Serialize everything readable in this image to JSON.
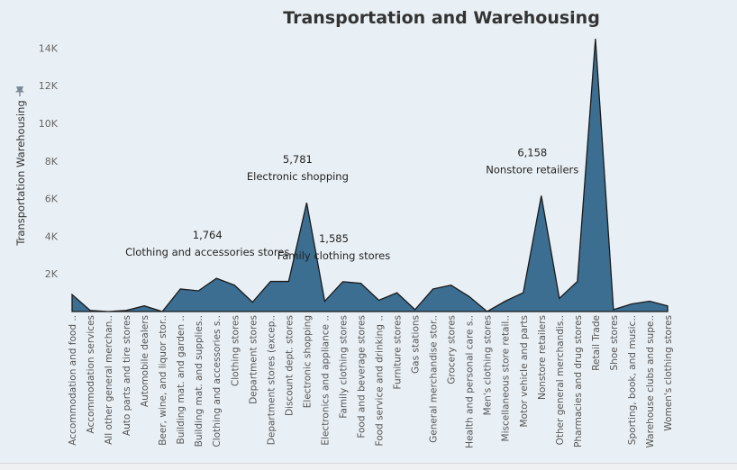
{
  "window": {
    "title": "Transportation and Warehousing"
  },
  "icons": {
    "pin": "pin-icon"
  },
  "colors": {
    "area_fill": "#3b6e91",
    "area_stroke": "#1a1a1a",
    "background": "#e9f0f5"
  },
  "chart_data": {
    "type": "area",
    "title": "Transportation and Warehousing",
    "xlabel": "",
    "ylabel": "Transportation Warehousing",
    "ylim": [
      0,
      14500
    ],
    "yticks": [
      2000,
      4000,
      6000,
      8000,
      10000,
      12000,
      14000
    ],
    "ytick_labels": [
      "2K",
      "4K",
      "6K",
      "8K",
      "10K",
      "12K",
      "14K"
    ],
    "grid": false,
    "categories": [
      "Accommodation and food ..",
      "Accommodation services",
      "All other general merchan..",
      "Auto parts and tire stores",
      "Automobile dealers",
      "Beer, wine, and liquor stor..",
      "Building mat. and garden ..",
      "Building mat. and supplies..",
      "Clothing and accessories s..",
      "Clothing stores",
      "Department stores",
      "Department stores (excep..",
      "Discount dept. stores",
      "Electronic shopping",
      "Electronics and appliance ..",
      "Family clothing stores",
      "Food and beverage stores",
      "Food service and drinking ..",
      "Furniture stores",
      "Gas stations",
      "General merchandise stor..",
      "Grocery stores",
      "Health and personal care s..",
      "Men's clothing stores",
      "Miscellaneous store retail..",
      "Motor vehicle and parts",
      "Nonstore retailers",
      "Other general merchandis..",
      "Pharmacies and drug stores",
      "Retail Trade",
      "Shoe stores",
      "Sporting, book, and music..",
      "Warehouse clubs and supe..",
      "Women's clothing stores"
    ],
    "values": [
      900,
      60,
      0,
      60,
      300,
      0,
      1200,
      1100,
      1764,
      1400,
      500,
      1600,
      1600,
      5781,
      550,
      1585,
      1500,
      600,
      1000,
      100,
      1200,
      1400,
      800,
      0,
      550,
      1000,
      6158,
      700,
      1600,
      14500,
      100,
      400,
      550,
      300
    ],
    "annotations": [
      {
        "category": "Clothing and accessories s..",
        "value_label": "1,764",
        "text": "Clothing and accessories stores"
      },
      {
        "category": "Electronic shopping",
        "value_label": "5,781",
        "text": "Electronic shopping"
      },
      {
        "category": "Family clothing stores",
        "value_label": "1,585",
        "text": "Family clothing stores"
      },
      {
        "category": "Nonstore retailers",
        "value_label": "6,158",
        "text": "Nonstore retailers"
      }
    ]
  }
}
